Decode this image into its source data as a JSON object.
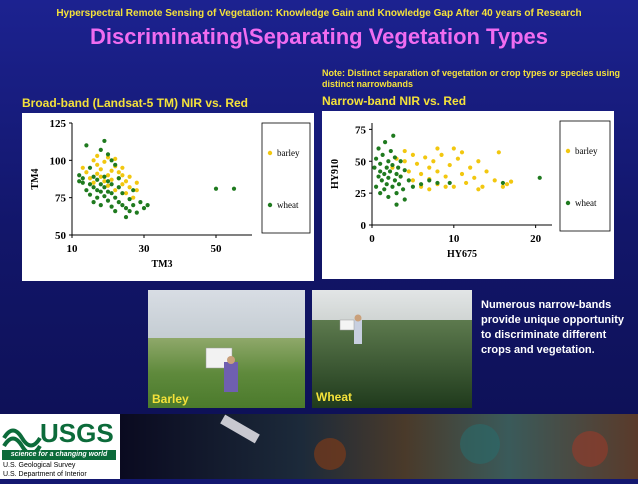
{
  "header": {
    "title": "Hyperspectral Remote Sensing of Vegetation: Knowledge Gain and Knowledge Gap After 40 years of Research",
    "main_title": "Discriminating\\Separating Vegetation Types"
  },
  "note": "Note: Distinct separation of vegetation or crop types or species using distinct narrowbands",
  "left_title": "Broad-band (Landsat-5 TM) NIR vs. Red",
  "right_title": "Narrow-band NIR vs. Red",
  "side_text": "Numerous narrow-bands provide unique opportunity to discriminate different crops and vegetation.",
  "photos": {
    "barley_label": "Barley",
    "wheat_label": "Wheat"
  },
  "footer": {
    "logo_text": "USGS",
    "tagline": "science for a changing world",
    "agency1": "U.S. Geological Survey",
    "agency2": "U.S. Department of Interior"
  },
  "colors": {
    "barley": "#f2c70f",
    "wheat": "#1f7a1f",
    "title_yellow": "#f5e23a",
    "title_magenta": "#f06cf0",
    "background": "#141870"
  },
  "chart_data": [
    {
      "type": "scatter",
      "xlabel": "TM3",
      "ylabel": "TM4",
      "xlim": [
        10,
        60
      ],
      "ylim": [
        50,
        125
      ],
      "xticks": [
        10,
        30,
        50
      ],
      "yticks": [
        50,
        75,
        100,
        125
      ],
      "legend_position": "right",
      "series": [
        {
          "name": "barley",
          "color": "#f2c70f",
          "points": [
            [
              13,
              95
            ],
            [
              14,
              92
            ],
            [
              15,
              88
            ],
            [
              16,
              100
            ],
            [
              16,
              85
            ],
            [
              17,
              97
            ],
            [
              17,
              91
            ],
            [
              18,
              89
            ],
            [
              18,
              94
            ],
            [
              19,
              86
            ],
            [
              19,
              99
            ],
            [
              20,
              90
            ],
            [
              20,
              83
            ],
            [
              21,
              93
            ],
            [
              21,
              87
            ],
            [
              22,
              96
            ],
            [
              22,
              80
            ],
            [
              23,
              88
            ],
            [
              23,
              92
            ],
            [
              24,
              84
            ],
            [
              24,
              90
            ],
            [
              25,
              86
            ],
            [
              25,
              78
            ],
            [
              26,
              82
            ],
            [
              26,
              89
            ],
            [
              27,
              75
            ],
            [
              28,
              80
            ],
            [
              28,
              85
            ],
            [
              20,
              102
            ],
            [
              22,
              101
            ],
            [
              17,
              103
            ],
            [
              24,
              95
            ]
          ]
        },
        {
          "name": "wheat",
          "color": "#1f7a1f",
          "points": [
            [
              12,
              90
            ],
            [
              12,
              86
            ],
            [
              13,
              88
            ],
            [
              13,
              85
            ],
            [
              14,
              110
            ],
            [
              14,
              80
            ],
            [
              15,
              84
            ],
            [
              15,
              77
            ],
            [
              15,
              95
            ],
            [
              16,
              89
            ],
            [
              16,
              72
            ],
            [
              16,
              82
            ],
            [
              17,
              87
            ],
            [
              17,
              80
            ],
            [
              17,
              75
            ],
            [
              18,
              107
            ],
            [
              18,
              84
            ],
            [
              18,
              79
            ],
            [
              18,
              70
            ],
            [
              19,
              113
            ],
            [
              19,
              82
            ],
            [
              19,
              76
            ],
            [
              19,
              89
            ],
            [
              20,
              104
            ],
            [
              20,
              79
            ],
            [
              20,
              73
            ],
            [
              20,
              86
            ],
            [
              21,
              100
            ],
            [
              21,
              78
            ],
            [
              21,
              69
            ],
            [
              21,
              84
            ],
            [
              22,
              97
            ],
            [
              22,
              75
            ],
            [
              22,
              66
            ],
            [
              23,
              88
            ],
            [
              23,
              82
            ],
            [
              23,
              72
            ],
            [
              24,
              78
            ],
            [
              24,
              70
            ],
            [
              25,
              68
            ],
            [
              25,
              62
            ],
            [
              26,
              74
            ],
            [
              26,
              66
            ],
            [
              27,
              70
            ],
            [
              27,
              80
            ],
            [
              28,
              65
            ],
            [
              29,
              72
            ],
            [
              30,
              68
            ],
            [
              31,
              70
            ],
            [
              50,
              81
            ],
            [
              55,
              81
            ]
          ]
        }
      ]
    },
    {
      "type": "scatter",
      "xlabel": "HY675",
      "ylabel": "HY910",
      "xlim": [
        0,
        22
      ],
      "ylim": [
        0,
        80
      ],
      "xticks": [
        0,
        10,
        20
      ],
      "yticks": [
        0,
        25,
        50,
        75
      ],
      "legend_position": "right",
      "series": [
        {
          "name": "barley",
          "color": "#f2c70f",
          "points": [
            [
              2.5,
              45
            ],
            [
              3,
              52
            ],
            [
              3.5,
              38
            ],
            [
              4,
              50
            ],
            [
              4.5,
              42
            ],
            [
              5,
              55
            ],
            [
              5,
              35
            ],
            [
              5.5,
              48
            ],
            [
              6,
              40
            ],
            [
              6.5,
              53
            ],
            [
              7,
              36
            ],
            [
              7,
              45
            ],
            [
              7.5,
              50
            ],
            [
              8,
              32
            ],
            [
              8,
              42
            ],
            [
              8.5,
              55
            ],
            [
              9,
              38
            ],
            [
              9.5,
              47
            ],
            [
              10,
              30
            ],
            [
              10,
              60
            ],
            [
              10.5,
              52
            ],
            [
              11,
              40
            ],
            [
              11.5,
              33
            ],
            [
              12,
              45
            ],
            [
              12.5,
              37
            ],
            [
              13,
              50
            ],
            [
              13.5,
              30
            ],
            [
              14,
              42
            ],
            [
              15,
              35
            ],
            [
              15.5,
              57
            ],
            [
              16,
              30
            ],
            [
              16.5,
              32
            ],
            [
              17,
              34
            ],
            [
              9,
              30
            ],
            [
              11,
              57
            ],
            [
              6,
              30
            ],
            [
              4,
              58
            ],
            [
              8,
              60
            ],
            [
              13,
              28
            ],
            [
              7,
              28
            ]
          ]
        },
        {
          "name": "wheat",
          "color": "#1f7a1f",
          "points": [
            [
              0.3,
              45
            ],
            [
              0.5,
              30
            ],
            [
              0.5,
              52
            ],
            [
              0.8,
              38
            ],
            [
              0.8,
              60
            ],
            [
              1,
              42
            ],
            [
              1,
              25
            ],
            [
              1,
              48
            ],
            [
              1.2,
              35
            ],
            [
              1.3,
              55
            ],
            [
              1.5,
              40
            ],
            [
              1.5,
              28
            ],
            [
              1.6,
              65
            ],
            [
              1.8,
              45
            ],
            [
              1.8,
              32
            ],
            [
              2,
              50
            ],
            [
              2,
              37
            ],
            [
              2,
              22
            ],
            [
              2.2,
              42
            ],
            [
              2.3,
              58
            ],
            [
              2.5,
              30
            ],
            [
              2.5,
              47
            ],
            [
              2.6,
              70
            ],
            [
              2.8,
              35
            ],
            [
              2.8,
              53
            ],
            [
              3,
              40
            ],
            [
              3,
              25
            ],
            [
              3,
              16
            ],
            [
              3.2,
              45
            ],
            [
              3.3,
              32
            ],
            [
              3.5,
              50
            ],
            [
              3.5,
              38
            ],
            [
              3.8,
              28
            ],
            [
              4,
              43
            ],
            [
              4,
              20
            ],
            [
              4.5,
              35
            ],
            [
              5,
              30
            ],
            [
              6,
              32
            ],
            [
              7,
              35
            ],
            [
              8,
              33
            ],
            [
              9.5,
              33
            ],
            [
              16,
              33
            ],
            [
              20.5,
              37
            ]
          ]
        }
      ]
    }
  ]
}
